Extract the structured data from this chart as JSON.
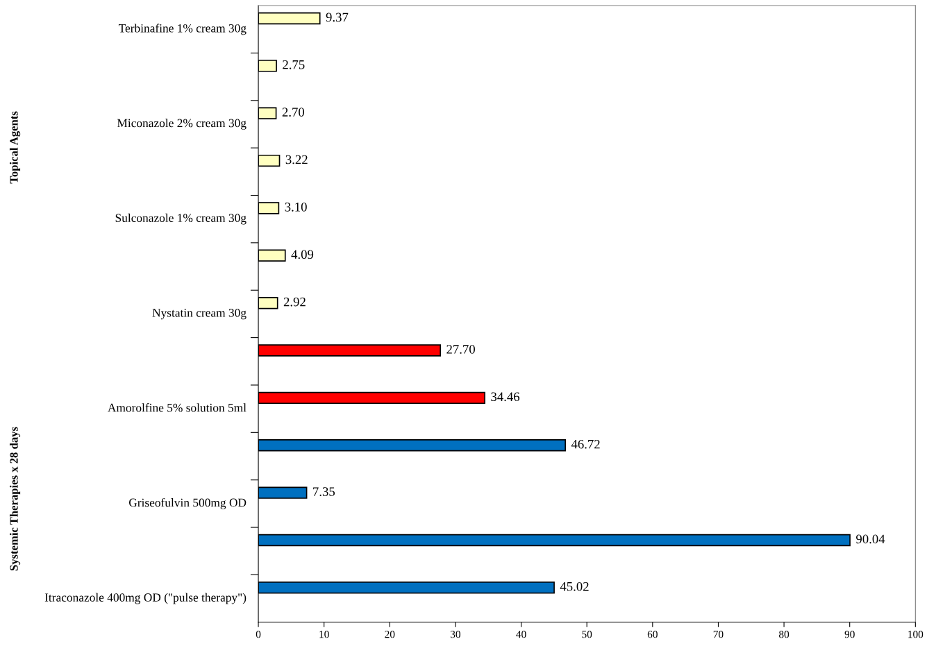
{
  "chart_data": {
    "type": "bar",
    "orientation": "horizontal",
    "categories": [
      "Terbinafine 1% cream 30g",
      null,
      "Miconazole 2% cream 30g",
      null,
      "Sulconazole 1% cream 30g",
      null,
      "Nystatin cream 30g",
      null,
      "Amorolfine 5% solution 5ml",
      null,
      "Griseofulvin 500mg OD",
      null,
      "Itraconazole 400mg OD (\"pulse therapy\")"
    ],
    "values": [
      9.37,
      2.75,
      2.7,
      3.22,
      3.1,
      4.09,
      2.92,
      27.7,
      34.46,
      46.72,
      7.35,
      90.04,
      45.02
    ],
    "colors": [
      "#ffffc0",
      "#ffffc0",
      "#ffffc0",
      "#ffffc0",
      "#ffffc0",
      "#ffffc0",
      "#ffffc0",
      "#ff0000",
      "#ff0000",
      "#0070c0",
      "#0070c0",
      "#0070c0",
      "#0070c0"
    ],
    "value_labels": [
      "9.37",
      "2.75",
      "2.70",
      "3.22",
      "3.10",
      "4.09",
      "2.92",
      "27.70",
      "34.46",
      "46.72",
      "7.35",
      "90.04",
      "45.02"
    ],
    "xlim": [
      0,
      100
    ],
    "xticks": [
      0,
      10,
      20,
      30,
      40,
      50,
      60,
      70,
      80,
      90,
      100
    ],
    "annotations": [
      "Topical Agents",
      "Systemic Therapies x 28 days"
    ],
    "grid": false,
    "legend": false
  }
}
